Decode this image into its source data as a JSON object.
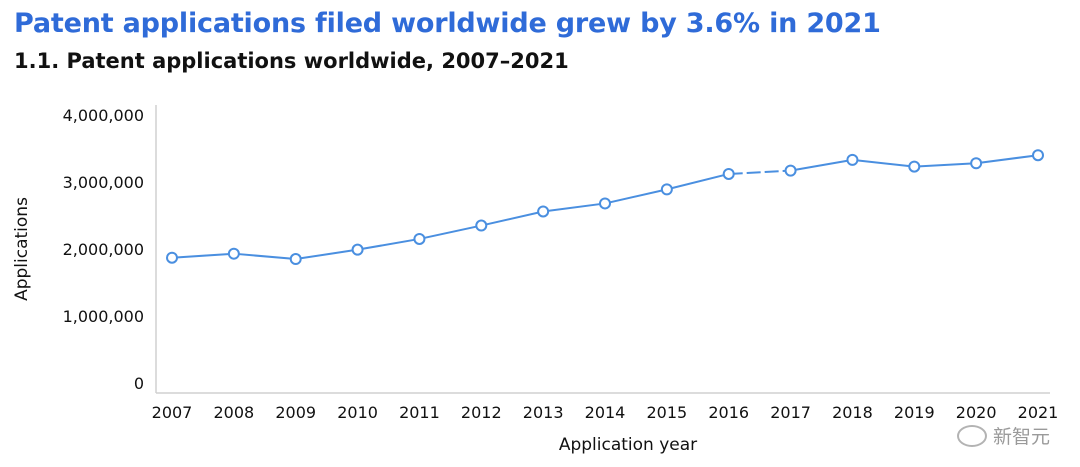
{
  "title": "Patent applications filed worldwide grew by 3.6% in 2021",
  "subtitle": "1.1. Patent applications worldwide, 2007–2021",
  "watermark": "新智元",
  "colors": {
    "title": "#2f6bd8",
    "series": "#4a8fe0"
  },
  "chart_data": {
    "type": "line",
    "title": "Patent applications worldwide, 2007–2021",
    "xlabel": "Application year",
    "ylabel": "Applications",
    "ylim": [
      0,
      4000000
    ],
    "yticks": [
      0,
      1000000,
      2000000,
      3000000,
      4000000
    ],
    "ytick_labels": [
      "0",
      "1,000,000",
      "2,000,000",
      "3,000,000",
      "4,000,000"
    ],
    "categories": [
      "2007",
      "2008",
      "2009",
      "2010",
      "2011",
      "2012",
      "2013",
      "2014",
      "2015",
      "2016",
      "2017",
      "2018",
      "2019",
      "2020",
      "2021"
    ],
    "series": [
      {
        "name": "Patent applications",
        "values": [
          1870000,
          1930000,
          1850000,
          1990000,
          2150000,
          2350000,
          2560000,
          2680000,
          2890000,
          3120000,
          3170000,
          3330000,
          3230000,
          3280000,
          3400000
        ],
        "dashed_segment": [
          "2016",
          "2017"
        ]
      }
    ],
    "grid": false,
    "legend": "none"
  }
}
